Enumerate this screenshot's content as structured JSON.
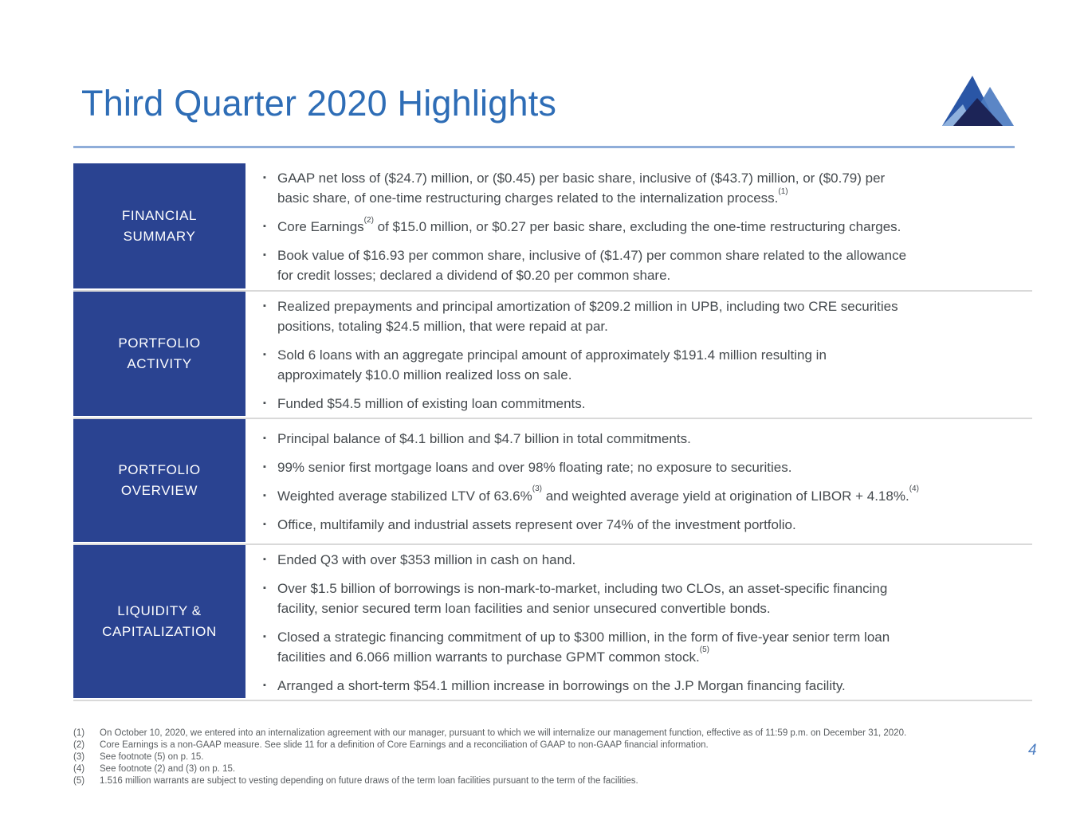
{
  "title": "Third Quarter 2020 Highlights",
  "page_number": "4",
  "bullet_glyph": "▪",
  "colors": {
    "title_blue": "#2e6db6",
    "rule_blue": "#8fadd9",
    "sidebar_blue": "#2a4391",
    "text_gray": "#454a4e",
    "footnote_gray": "#595d60",
    "divider_gray": "#d9d9d9",
    "page_number_blue": "#4d7ec2",
    "logo_main_blue": "#2a56a6",
    "logo_light_blue": "#4d7cc1",
    "logo_pale_blue": "#8fb1dd",
    "logo_dark_navy": "#1c2457"
  },
  "sections": [
    {
      "id": "financial-summary",
      "label": "FINANCIAL\nSUMMARY",
      "bullets": [
        [
          {
            "t": "GAAP net loss of ($24.7) million, or ($0.45) per basic share, inclusive of ($43.7) million, or ($0.79) per\nbasic share, of one-time restructuring charges related to the internalization process."
          },
          {
            "t": "(1)",
            "sup": true
          }
        ],
        [
          {
            "t": "Core Earnings"
          },
          {
            "t": "(2)",
            "sup": true
          },
          {
            "t": " of $15.0 million, or $0.27 per basic share, excluding the one-time restructuring charges."
          }
        ],
        [
          {
            "t": "Book value of $16.93 per common share, inclusive of ($1.47) per common share related to the allowance\nfor credit losses; declared a dividend of $0.20 per common share."
          }
        ]
      ]
    },
    {
      "id": "portfolio-activity",
      "label": "PORTFOLIO\nACTIVITY",
      "bullets": [
        [
          {
            "t": "Realized prepayments and principal amortization of $209.2 million in UPB, including two CRE securities\npositions, totaling $24.5 million, that were repaid at par."
          }
        ],
        [
          {
            "t": "Sold 6 loans with an aggregate principal amount of approximately $191.4 million resulting in\napproximately $10.0 million realized loss on sale."
          }
        ],
        [
          {
            "t": "Funded $54.5 million of existing loan commitments."
          }
        ]
      ]
    },
    {
      "id": "portfolio-overview",
      "label": "PORTFOLIO\nOVERVIEW",
      "bullets": [
        [
          {
            "t": "Principal balance of $4.1 billion and $4.7 billion in total commitments."
          }
        ],
        [
          {
            "t": "99% senior first mortgage loans and over 98% floating rate; no exposure to securities."
          }
        ],
        [
          {
            "t": "Weighted average stabilized LTV of 63.6%"
          },
          {
            "t": "(3)",
            "sup": true
          },
          {
            "t": " and weighted average yield at origination of LIBOR + 4.18%."
          },
          {
            "t": "(4)",
            "sup": true
          }
        ],
        [
          {
            "t": "Office, multifamily and industrial assets represent over 74% of the investment portfolio."
          }
        ]
      ]
    },
    {
      "id": "liquidity-capitalization",
      "label": "LIQUIDITY &\nCAPITALIZATION",
      "bullets": [
        [
          {
            "t": "Ended Q3 with over $353 million in cash on hand."
          }
        ],
        [
          {
            "t": "Over $1.5 billion of borrowings is non-mark-to-market, including two CLOs, an asset-specific financing\nfacility, senior secured term loan facilities and senior unsecured convertible bonds."
          }
        ],
        [
          {
            "t": "Closed a strategic financing commitment of up to $300 million, in the form of five-year senior term loan\nfacilities and 6.066 million warrants to purchase GPMT common stock."
          },
          {
            "t": "(5)",
            "sup": true
          }
        ],
        [
          {
            "t": "Arranged a short-term $54.1 million increase in borrowings on the J.P Morgan financing facility."
          }
        ]
      ]
    }
  ],
  "footnotes": [
    {
      "num": "(1)",
      "text": "On October 10, 2020, we entered into an internalization agreement with our manager, pursuant to which we will internalize our management function, effective as of 11:59 p.m. on December 31, 2020."
    },
    {
      "num": "(2)",
      "text": "Core Earnings is a non-GAAP measure. See slide 11 for a definition of Core Earnings and a reconciliation of GAAP to non-GAAP financial information."
    },
    {
      "num": "(3)",
      "text": "See footnote (5) on p. 15."
    },
    {
      "num": "(4)",
      "text": "See footnote (2) and (3) on p. 15."
    },
    {
      "num": "(5)",
      "text": "1.516 million warrants are subject to vesting depending on future draws of the term loan facilities pursuant to the term of the facilities."
    }
  ]
}
